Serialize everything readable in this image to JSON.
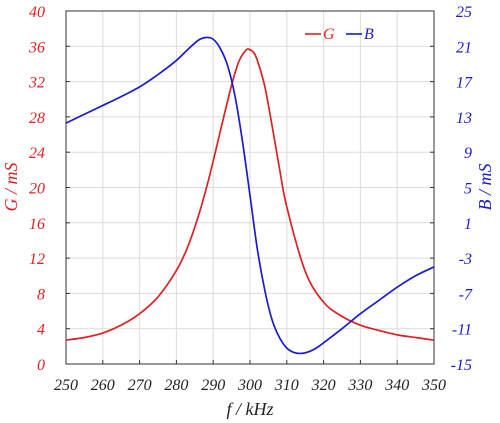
{
  "chart_data": {
    "type": "line",
    "xlabel": "f / kHz",
    "ylabel_left": "G / mS",
    "ylabel_right": "B / mS",
    "xlim": [
      250,
      350
    ],
    "ylim_left": [
      0,
      40
    ],
    "ylim_right": [
      -15,
      25
    ],
    "x_ticks": [
      "250",
      "260",
      "270",
      "280",
      "290",
      "300",
      "310",
      "320",
      "330",
      "340",
      "350"
    ],
    "y_left_ticks": [
      "0",
      "4",
      "8",
      "12",
      "16",
      "20",
      "24",
      "28",
      "32",
      "36",
      "40"
    ],
    "y_right_ticks": [
      "-15",
      "-11",
      "-7",
      "-3",
      "1",
      "5",
      "9",
      "13",
      "17",
      "21",
      "25"
    ],
    "grid": true,
    "legend_position": "top-right",
    "colors": {
      "G": "#e02020",
      "B": "#1a1ad0"
    },
    "series": [
      {
        "name": "G",
        "axis": "left",
        "x": [
          250,
          255,
          260,
          265,
          270,
          275,
          280,
          283,
          286,
          289,
          292,
          295,
          297,
          299,
          300,
          301,
          302,
          304,
          306,
          308,
          310,
          315,
          320,
          325,
          330,
          335,
          340,
          345,
          350
        ],
        "y": [
          2.7,
          3.0,
          3.5,
          4.4,
          5.7,
          7.6,
          10.6,
          13.2,
          16.8,
          21.3,
          26.5,
          31.6,
          34.3,
          35.6,
          35.6,
          35.3,
          34.4,
          31.5,
          27.0,
          22.2,
          17.8,
          10.5,
          7.0,
          5.4,
          4.4,
          3.8,
          3.3,
          3.0,
          2.7
        ]
      },
      {
        "name": "B",
        "axis": "right",
        "x": [
          250,
          255,
          260,
          265,
          270,
          275,
          280,
          283,
          286,
          288,
          290,
          292,
          294,
          296,
          298,
          300,
          302,
          304,
          306,
          308,
          310,
          312,
          314,
          316,
          318,
          320,
          325,
          330,
          335,
          340,
          345,
          350
        ],
        "y": [
          12.3,
          13.3,
          14.3,
          15.3,
          16.4,
          17.8,
          19.4,
          20.6,
          21.7,
          22.0,
          21.8,
          20.7,
          18.7,
          15.2,
          10.1,
          4.1,
          -2.0,
          -6.6,
          -10.0,
          -12.0,
          -13.2,
          -13.7,
          -13.8,
          -13.6,
          -13.2,
          -12.6,
          -11.0,
          -9.3,
          -7.8,
          -6.3,
          -5.0,
          -4.0
        ]
      }
    ]
  }
}
